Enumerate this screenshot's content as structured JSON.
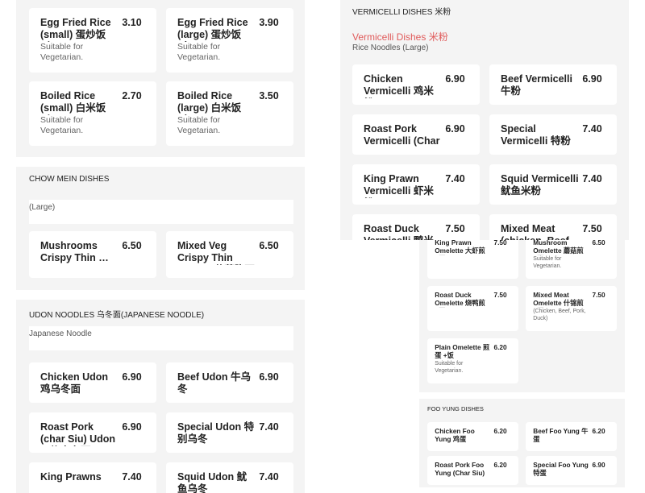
{
  "left_panels": [
    {
      "items": [
        {
          "name": "Egg Fried Rice (small) 蛋炒饭(小)",
          "price": "3.10",
          "note": "Suitable for Vegetarian."
        },
        {
          "name": "Egg Fried Rice (large) 蛋炒饭(大)",
          "price": "3.90",
          "note": "Suitable for Vegetarian."
        },
        {
          "name": "Boiled Rice (small) 白米饭(小)",
          "price": "2.70",
          "note": "Suitable for Vegetarian."
        },
        {
          "name": "Boiled Rice (large) 白米饭(大)",
          "price": "3.50",
          "note": "Suitable for Vegetarian."
        }
      ]
    },
    {
      "title": "CHOW MEIN DISHES",
      "note": "(Large)",
      "items": [
        {
          "name": "Mushrooms Crispy Thin …",
          "price": "6.50"
        },
        {
          "name": "Mixed Veg Crispy Thin Noodle 什菜脆面",
          "price": "6.50"
        }
      ]
    },
    {
      "title": "UDON NOODLES 乌冬面(JAPANESE NOODLE)",
      "note": "Japanese Noodle",
      "items": [
        {
          "name": "Chicken Udon 鸡乌冬面",
          "price": "6.90"
        },
        {
          "name": "Beef Udon 牛乌冬",
          "price": "6.90"
        },
        {
          "name": "Roast Pork (char Siu) Udon 叉烧乌冬面",
          "price": "6.90"
        },
        {
          "name": "Special Udon 特别乌冬",
          "price": "7.40"
        },
        {
          "name": "King Prawns",
          "price": "7.40"
        },
        {
          "name": "Squid Udon 鱿鱼乌冬",
          "price": "7.40"
        }
      ]
    }
  ],
  "vermicelli": {
    "title": "VERMICELLI DISHES 米粉",
    "subtitle": "Vermicelli Dishes  米粉",
    "note": "Rice Noodles (Large)",
    "items": [
      {
        "name": "Chicken Vermicelli 鸡米粉",
        "price": "6.90"
      },
      {
        "name": "Beef Vermicelli 牛粉",
        "price": "6.90"
      },
      {
        "name": "Roast Pork Vermicelli (Char …",
        "price": "6.90"
      },
      {
        "name": "Special Vermicelli 特粉",
        "price": "7.40"
      },
      {
        "name": "King Prawn Vermicelli 虾米粉",
        "price": "7.40"
      },
      {
        "name": "Squid Vermicelli 鱿鱼米粉",
        "price": "7.40"
      },
      {
        "name": "Roast Duck Vermicelli 鸭米粉",
        "price": "7.50"
      },
      {
        "name": "Mixed Meat (chicken, Beef",
        "price": "7.50"
      }
    ]
  },
  "omelette": {
    "items": [
      {
        "name": "King Prawn Omelette 大虾煎+蛋",
        "price": "7.50"
      },
      {
        "name": "Mushroom Omelette 蘑菇煎+蛋",
        "price": "6.50",
        "note": "Suitable for Vegetarian."
      },
      {
        "name": "Roast Duck Omelette 烧鸭煎+蛋",
        "price": "7.50"
      },
      {
        "name": "Mixed Meat Omelette 什锦煎+蛋",
        "price": "7.50",
        "note": "(Chicken, Beef, Pork, Duck)"
      },
      {
        "name": "Plain Omelette 煎蛋 +饭",
        "price": "6.20",
        "note": "Suitable for Vegetarian."
      }
    ]
  },
  "foo_yung": {
    "title": "FOO YUNG DISHES",
    "items": [
      {
        "name": "Chicken Foo Yung 鸡蛋",
        "price": "6.20"
      },
      {
        "name": "Beef Foo Yung 牛蛋",
        "price": "6.20"
      },
      {
        "name": "Roast Pork Foo Yung (Char Siu) …",
        "price": "6.20"
      },
      {
        "name": "Special Foo Yung 特蛋",
        "price": "6.90"
      }
    ]
  }
}
